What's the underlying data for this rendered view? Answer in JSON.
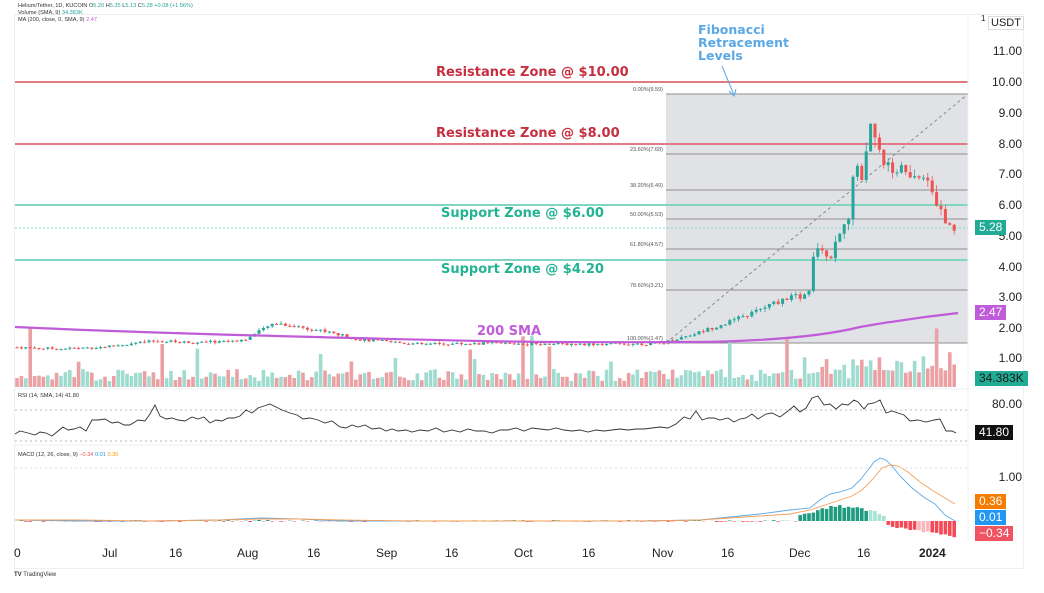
{
  "header": {
    "symbol_line": {
      "title": "Helium/Tether, 1D, KUCOIN",
      "open_label": "O",
      "open": "5.20",
      "high_label": "H",
      "high": "5.35",
      "low_label": "L",
      "low": "5.13",
      "close_label": "C",
      "close": "5.28",
      "change": "+0.08 (+1.56%)"
    },
    "volume_line": {
      "label": "Volume (SMA, 9)",
      "value": "34.383K"
    },
    "ma_line": {
      "label": "MA (200, close, 0, SMA, 9)",
      "value": "2.47"
    }
  },
  "price_axis": {
    "currency": "USDT",
    "currency_sup": "1",
    "ticks": [
      "11.00",
      "10.00",
      "9.00",
      "8.00",
      "7.00",
      "6.00",
      "5.00",
      "4.00",
      "3.00",
      "2.00",
      "1.00"
    ],
    "last_price_tag": "5.28",
    "sma_tag": "2.47",
    "volume_tag": "34.383K"
  },
  "rsi": {
    "legend": "RSI (14, SMA, 14)",
    "value": "41.80",
    "ticks": [
      "80.00"
    ],
    "tag": "41.80"
  },
  "macd": {
    "legend": "MACD (12, 26, close, 9)",
    "hist": "−0.34",
    "macd": "0.01",
    "signal": "0.36",
    "ticks": [
      "1.00"
    ],
    "tags": {
      "signal": "0.36",
      "macd": "0.01",
      "hist": "−0.34"
    }
  },
  "time_axis": {
    "labels": [
      "0",
      "Jul",
      "16",
      "Aug",
      "16",
      "Sep",
      "16",
      "Oct",
      "16",
      "Nov",
      "16",
      "Dec",
      "16",
      "2024"
    ]
  },
  "annotations": {
    "fib_title": [
      "Fibonacci",
      "Retracement",
      "Levels"
    ],
    "res10": "Resistance Zone @ $10.00",
    "res8": "Resistance Zone @ $8.00",
    "sup6": "Support Zone @ $6.00",
    "sup42": "Support Zone @ $4.20",
    "sma200": "200 SMA"
  },
  "fib_levels": [
    {
      "label": "0.00%(9.59)"
    },
    {
      "label": "23.60%(7.68)"
    },
    {
      "label": "38.20%(6.49)"
    },
    {
      "label": "50.00%(5.53)"
    },
    {
      "label": "61.80%(4.57)"
    },
    {
      "label": "78.60%(3.21)"
    },
    {
      "label": "100.00%(1.47)"
    }
  ],
  "brand": "TradingView",
  "colors": {
    "up": "#26a69a",
    "down": "#ef5350",
    "resistance": "#c62f3e",
    "support": "#22b391",
    "sma": "#c05bd9",
    "fib_fill": "#e1e2e6",
    "macd": "#2196f3",
    "signal": "#ff9800"
  },
  "chart_data": {
    "type": "candlestick",
    "title": "Helium/Tether, 1D, KUCOIN",
    "x_labels": [
      "Jul",
      "16",
      "Aug",
      "16",
      "Sep",
      "16",
      "Oct",
      "16",
      "Nov",
      "16",
      "Dec",
      "16",
      "2024"
    ],
    "ylabel": "USDT",
    "ylim": [
      0.5,
      11.5
    ],
    "last": {
      "open": 5.2,
      "high": 5.35,
      "low": 5.13,
      "close": 5.28,
      "change": 0.08,
      "change_pct": 1.56
    },
    "approx_close_by_period": [
      {
        "period": "late Jun",
        "close": 1.35
      },
      {
        "period": "Jul",
        "close": 1.3
      },
      {
        "period": "mid Jul",
        "close": 1.55
      },
      {
        "period": "Aug",
        "close": 1.6
      },
      {
        "period": "early-mid Aug",
        "close": 2.1
      },
      {
        "period": "late Aug",
        "close": 1.75
      },
      {
        "period": "Sep",
        "close": 1.55
      },
      {
        "period": "Oct",
        "close": 1.45
      },
      {
        "period": "late Oct",
        "close": 1.47
      },
      {
        "period": "early Nov",
        "close": 1.9
      },
      {
        "period": "mid Nov",
        "close": 2.3
      },
      {
        "period": "late Nov",
        "close": 3.0
      },
      {
        "period": "early Dec",
        "close": 4.8
      },
      {
        "period": "mid Dec",
        "close": 8.0
      },
      {
        "period": "Dec 20 peak",
        "close": 9.59
      },
      {
        "period": "late Dec",
        "close": 7.0
      },
      {
        "period": "early Jan 2024",
        "close": 5.28
      }
    ],
    "horizontal_levels": [
      {
        "name": "Resistance Zone",
        "value": 10.0
      },
      {
        "name": "Resistance Zone",
        "value": 8.0
      },
      {
        "name": "Support Zone",
        "value": 6.0
      },
      {
        "name": "Support Zone",
        "value": 4.2
      }
    ],
    "fibonacci": [
      {
        "pct": 0.0,
        "price": 9.59
      },
      {
        "pct": 23.6,
        "price": 7.68
      },
      {
        "pct": 38.2,
        "price": 6.49
      },
      {
        "pct": 50.0,
        "price": 5.53
      },
      {
        "pct": 61.8,
        "price": 4.57
      },
      {
        "pct": 78.6,
        "price": 3.21
      },
      {
        "pct": 100.0,
        "price": 1.47
      }
    ],
    "sma200": {
      "last": 2.47,
      "trend": "flat ~1.8-2.0 through Oct, rising to 2.47 by Jan"
    },
    "volume": {
      "sma9_last": "34.383K"
    },
    "rsi": {
      "period": 14,
      "last": 41.8,
      "band": 80
    },
    "macd": {
      "fast": 12,
      "slow": 26,
      "signal": 9,
      "macd": 0.01,
      "signal_value": 0.36,
      "histogram": -0.34
    }
  }
}
